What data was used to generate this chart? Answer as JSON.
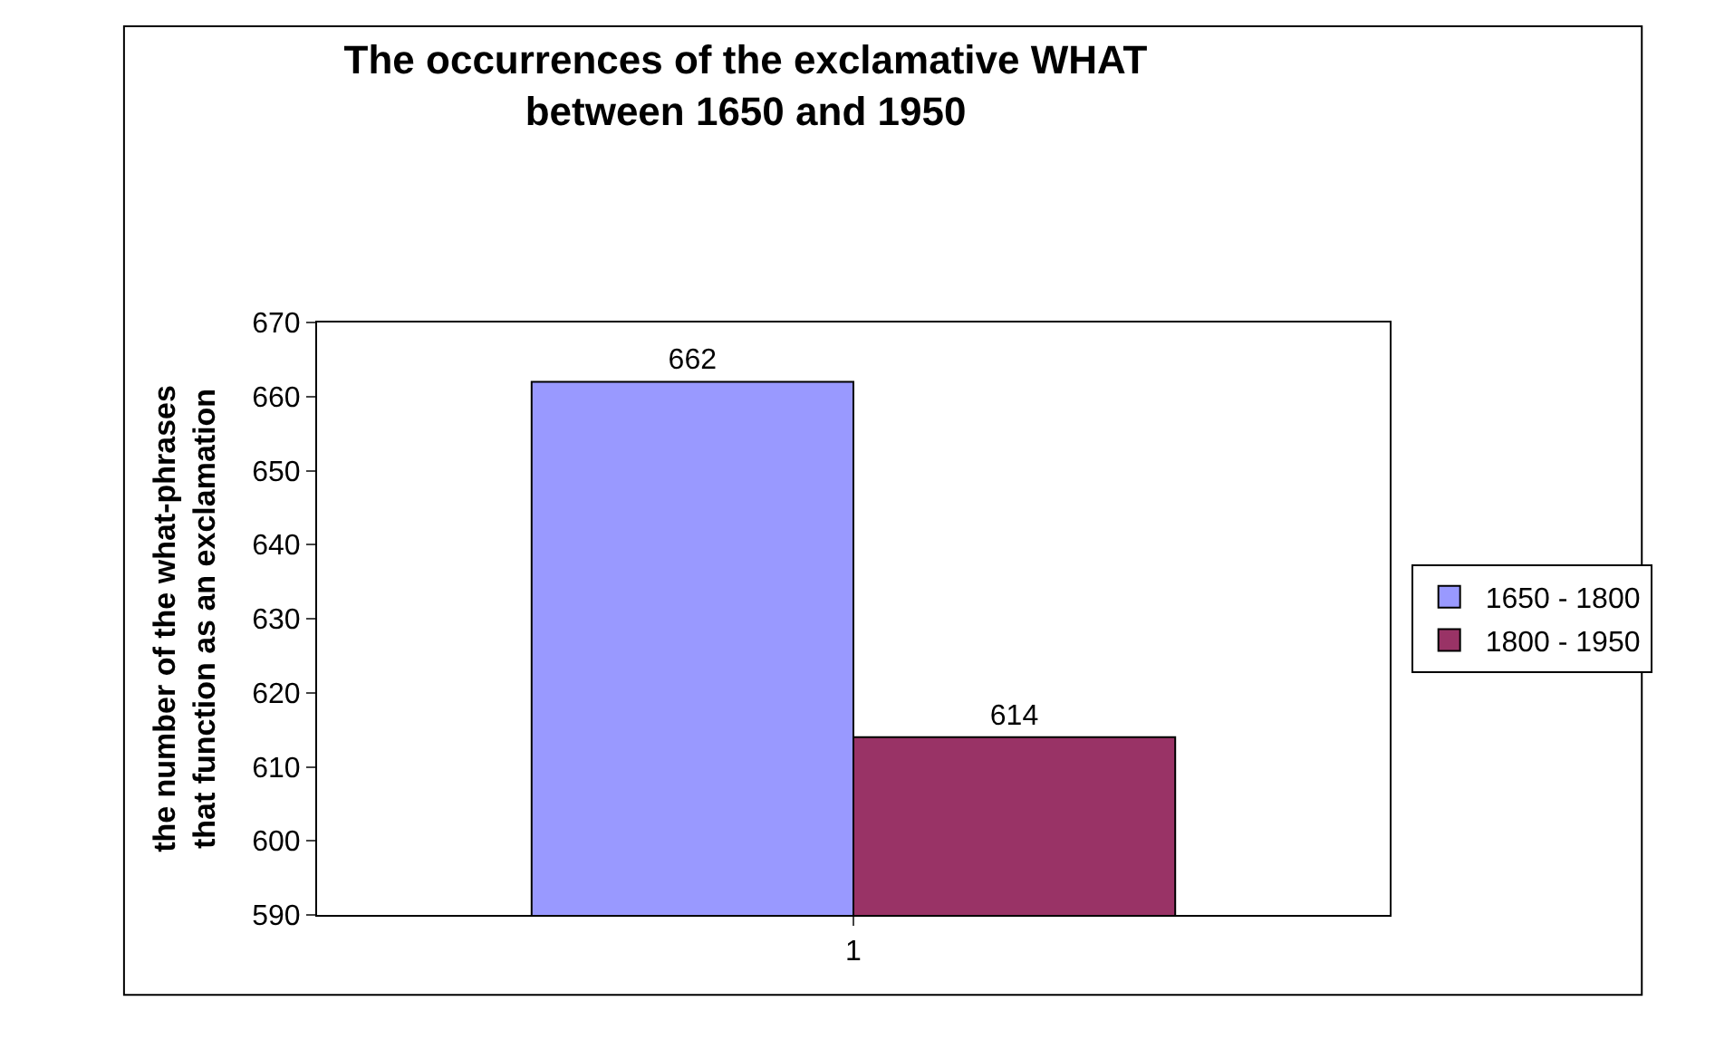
{
  "chart_data": {
    "type": "bar",
    "title": "The occurrences of the exclamative WHAT\nbetween 1650 and 1950",
    "ylabel": "the number of the what-phrases\nthat function as an exclamation",
    "categories": [
      "1"
    ],
    "series": [
      {
        "name": "1650 - 1800",
        "color": "#9999ff",
        "values": [
          662
        ]
      },
      {
        "name": "1800 - 1950",
        "color": "#993366",
        "values": [
          614
        ]
      }
    ],
    "ylim": [
      590,
      670
    ],
    "yticks": [
      590,
      600,
      610,
      620,
      630,
      640,
      650,
      660,
      670
    ],
    "grid": false,
    "legend": "right",
    "data_labels": true
  }
}
